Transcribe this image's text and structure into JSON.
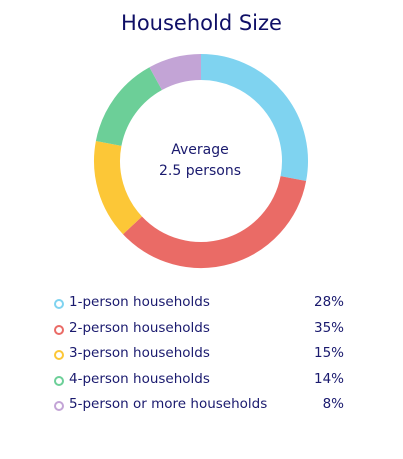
{
  "chart_data": {
    "type": "pie",
    "title": "Household Size",
    "center_text": {
      "line1": "Average",
      "line2": "2.5 persons"
    },
    "categories": [
      "1-person households",
      "2-person households",
      "3-person households",
      "4-person households",
      "5-person or more households"
    ],
    "values": [
      28,
      35,
      15,
      14,
      8
    ],
    "value_labels": [
      "28%",
      "35%",
      "15%",
      "14%",
      "8%"
    ],
    "colors": [
      "#7fd3f0",
      "#ea6b66",
      "#fcc737",
      "#6ccf98",
      "#c3a4d6"
    ],
    "legend_position": "bottom"
  }
}
